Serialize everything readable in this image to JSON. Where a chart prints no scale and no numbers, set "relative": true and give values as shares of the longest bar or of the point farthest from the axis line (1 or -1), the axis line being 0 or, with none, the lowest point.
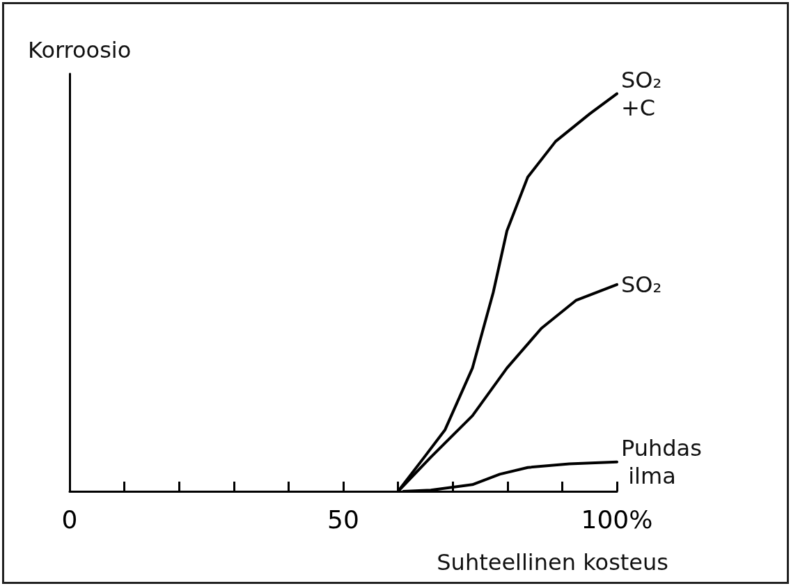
{
  "chart_data": {
    "type": "line",
    "relative": true,
    "ylabel": "Korroosio",
    "xlabel": "Suhteellinen kosteus",
    "xlim": [
      0,
      100
    ],
    "xticks": [
      0,
      {
        "value": 10,
        "label": null
      },
      {
        "value": 20,
        "label": null
      },
      {
        "value": 30,
        "label": null
      },
      {
        "value": 40,
        "label": null
      },
      50,
      {
        "value": 60,
        "label": null
      },
      {
        "value": 70,
        "label": null
      },
      {
        "value": 80,
        "label": null
      },
      {
        "value": 90,
        "label": null
      },
      {
        "value": 100,
        "label": "100%"
      }
    ],
    "grid": false,
    "legend": false,
    "marker": "none",
    "line_style": "solid",
    "series": [
      {
        "name": "SO₂+C",
        "color": "#000000",
        "x": [
          60,
          64.8,
          68.6,
          73.6,
          77.4,
          79.9,
          83.7,
          88.8,
          95.1,
          100
        ],
        "values": [
          0,
          0.086,
          0.155,
          0.31,
          0.5,
          0.655,
          0.79,
          0.88,
          0.95,
          1
        ]
      },
      {
        "name": "SO₂",
        "color": "#000000",
        "x": [
          60,
          66,
          73.6,
          79.9,
          86.2,
          92.5,
          100
        ],
        "values": [
          0,
          0.086,
          0.19,
          0.31,
          0.41,
          0.48,
          0.52
        ]
      },
      {
        "name": "Puhdas ilma",
        "color": "#000000",
        "x": [
          61,
          66,
          73.6,
          78.6,
          83.7,
          91.3,
          100
        ],
        "values": [
          0,
          0.003,
          0.017,
          0.043,
          0.06,
          0.069,
          0.074
        ]
      }
    ]
  }
}
